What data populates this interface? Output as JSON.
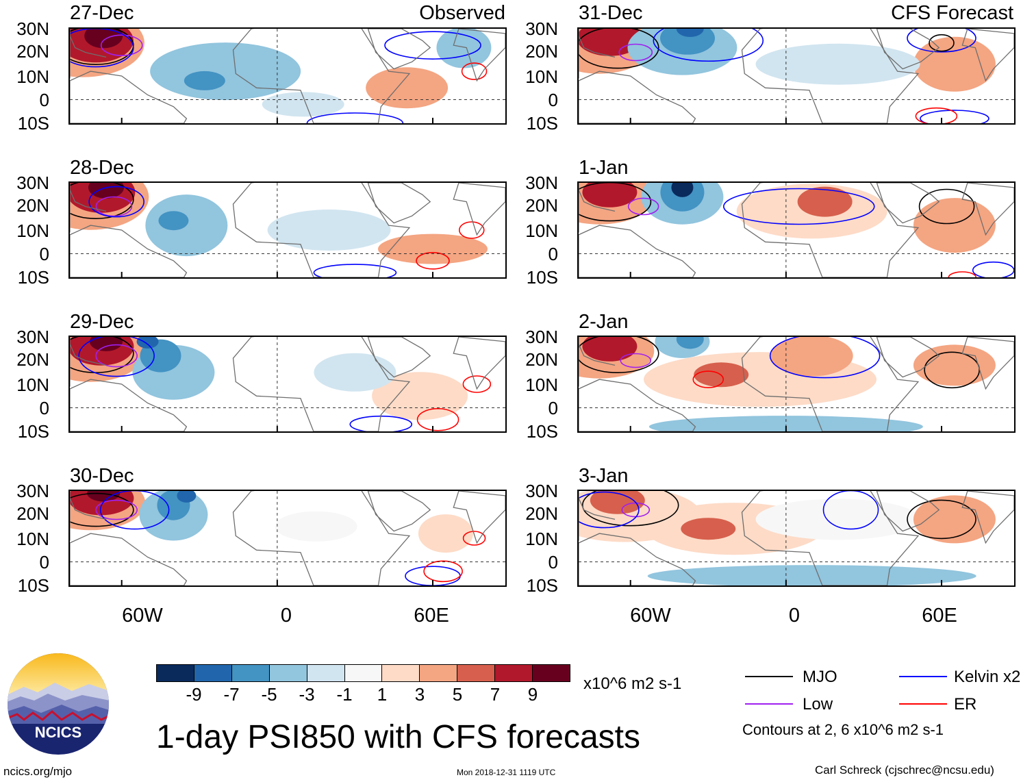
{
  "panels": [
    {
      "date": "27-Dec",
      "tag": "Observed"
    },
    {
      "date": "28-Dec",
      "tag": ""
    },
    {
      "date": "29-Dec",
      "tag": ""
    },
    {
      "date": "30-Dec",
      "tag": ""
    },
    {
      "date": "31-Dec",
      "tag": "CFS Forecast"
    },
    {
      "date": "1-Jan",
      "tag": ""
    },
    {
      "date": "2-Jan",
      "tag": ""
    },
    {
      "date": "3-Jan",
      "tag": ""
    }
  ],
  "lat_labels": [
    "30N",
    "20N",
    "10N",
    "0",
    "10S"
  ],
  "lon_labels": [
    "60W",
    "0",
    "60E"
  ],
  "colorbar": {
    "colors": [
      "#0a2a5c",
      "#2166ac",
      "#4393c3",
      "#92c5de",
      "#d1e5f0",
      "#f7f7f7",
      "#fddbc7",
      "#f4a582",
      "#d6604d",
      "#b2182b",
      "#67001f"
    ],
    "labels": [
      "-9",
      "-7",
      "-5",
      "-3",
      "-1",
      "1",
      "3",
      "5",
      "7",
      "9"
    ],
    "units": "x10^6 m2 s-1"
  },
  "title": "1-day PSI850 with CFS forecasts",
  "legend": {
    "items": [
      {
        "label": "MJO",
        "color": "#000000"
      },
      {
        "label": "Kelvin x2",
        "color": "#0000ff"
      },
      {
        "label": "Low",
        "color": "#a020f0"
      },
      {
        "label": "ER",
        "color": "#ff0000"
      }
    ],
    "note": "Contours at 2, 6 x10^6 m2 s-1"
  },
  "logo_text": "NCICS",
  "footer": {
    "left": "ncics.org/mjo",
    "center": "Mon 2018-12-31 1119 UTC",
    "right": "Carl Schreck (cjschrec@ncsu.edu)"
  }
}
